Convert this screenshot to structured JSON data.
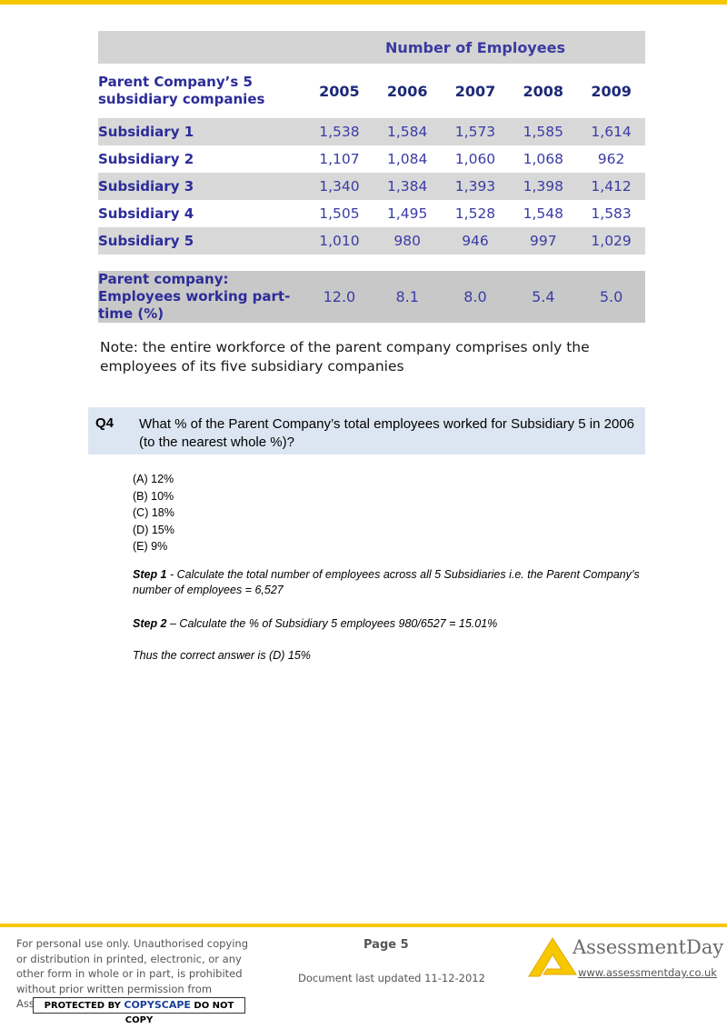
{
  "table": {
    "group_header": "Number of Employees",
    "row_header": "Parent Company’s 5 subsidiary companies",
    "years": [
      "2005",
      "2006",
      "2007",
      "2008",
      "2009"
    ],
    "rows": [
      {
        "name": "Subsidiary 1",
        "values": [
          "1,538",
          "1,584",
          "1,573",
          "1,585",
          "1,614"
        ]
      },
      {
        "name": "Subsidiary 2",
        "values": [
          "1,107",
          "1,084",
          "1,060",
          "1,068",
          "962"
        ]
      },
      {
        "name": "Subsidiary 3",
        "values": [
          "1,340",
          "1,384",
          "1,393",
          "1,398",
          "1,412"
        ]
      },
      {
        "name": "Subsidiary 4",
        "values": [
          "1,505",
          "1,495",
          "1,528",
          "1,548",
          "1,583"
        ]
      },
      {
        "name": "Subsidiary 5",
        "values": [
          "1,010",
          "980",
          "946",
          "997",
          "1,029"
        ]
      }
    ],
    "part_time": {
      "label": "Parent company: Employees working part-time (%)",
      "values": [
        "12.0",
        "8.1",
        "8.0",
        "5.4",
        "5.0"
      ]
    }
  },
  "note": "Note: the entire workforce of the parent company comprises only the employees of its five subsidiary companies",
  "question": {
    "label": "Q4",
    "text": "What % of the Parent Company’s total employees worked for Subsidiary 5 in 2006 (to the nearest whole %)?",
    "options": [
      "(A) 12%",
      "(B) 10%",
      "(C) 18%",
      "(D) 15%",
      "(E) 9%"
    ]
  },
  "solution": {
    "step1_label": "Step 1",
    "step1_text": " - Calculate the total number of employees across all 5 Subsidiaries i.e. the Parent Company’s number of employees = 6,527",
    "step2_label": "Step 2",
    "step2_text": " – Calculate the % of Subsidiary 5 employees 980/6527 = 15.01%",
    "conclusion": "Thus the correct answer is (D) 15%"
  },
  "footer": {
    "legal": "For personal use only. Unauthorised copying or distribution in printed, electronic, or any other form in whole or in part, is prohibited without prior written permission from AssessmentDay.",
    "copyscape_pre": "PROTECTED BY ",
    "copyscape_brand": "COPYSCAPE",
    "copyscape_post": " DO NOT COPY",
    "page": "Page 5",
    "updated": "Document last updated 11-12-2012",
    "brand": "AssessmentDay",
    "website": "www.assessmentday.co.uk",
    "accent_color": "#f7c800"
  }
}
